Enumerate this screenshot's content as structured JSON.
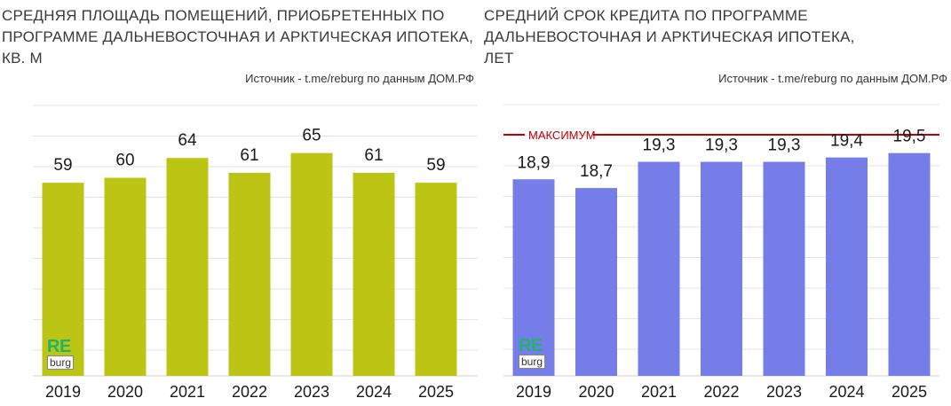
{
  "left": {
    "title": "СРЕДНЯЯ ПЛОЩАДЬ ПОМЕЩЕНИЙ, ПРИОБРЕТЕННЫХ ПО\nПРОГРАММЕ ДАЛЬНЕВОСТОЧНАЯ И АРКТИЧЕСКАЯ ИПОТЕКА,\nКВ. М",
    "source": "Источник - t.me/reburg по данным ДОМ.РФ",
    "logo_top": "RE",
    "logo_bottom": "burg"
  },
  "right": {
    "title": "СРЕДНИЙ СРОК КРЕДИТА  ПО ПРОГРАММЕ\nДАЛЬНЕВОСТОЧНАЯ И АРКТИЧЕСКАЯ ИПОТЕКА,\nЛЕТ",
    "source": "Источник - t.me/reburg по данным ДОМ.РФ",
    "max_label": "МАКСИМУМ",
    "logo_top": "RE",
    "logo_bottom": "burg"
  },
  "chart_data": [
    {
      "type": "bar",
      "title": "СРЕДНЯЯ ПЛОЩАДЬ ПОМЕЩЕНИЙ, ПРИОБРЕТЕННЫХ ПО ПРОГРАММЕ ДАЛЬНЕВОСТОЧНАЯ И АРКТИЧЕСКАЯ ИПОТЕКА, КВ. М",
      "categories": [
        "2019",
        "2020",
        "2021",
        "2022",
        "2023",
        "2024",
        "2025"
      ],
      "values": [
        59,
        60,
        64,
        61,
        65,
        61,
        59
      ],
      "labels": [
        "59",
        "60",
        "64",
        "61",
        "65",
        "61",
        "59"
      ],
      "ylim": [
        20,
        78
      ],
      "bar_color": "#bcc513",
      "grid": true,
      "xlabel": "",
      "ylabel": ""
    },
    {
      "type": "bar",
      "title": "СРЕДНИЙ СРОК КРЕДИТА ПО ПРОГРАММЕ ДАЛЬНЕВОСТОЧНАЯ И АРКТИЧЕСКАЯ ИПОТЕКА, ЛЕТ",
      "categories": [
        "2019",
        "2020",
        "2021",
        "2022",
        "2023",
        "2024",
        "2025"
      ],
      "values": [
        18.9,
        18.7,
        19.3,
        19.3,
        19.3,
        19.4,
        19.5
      ],
      "labels": [
        "18,9",
        "18,7",
        "19,3",
        "19,3",
        "19,3",
        "19,4",
        "19,5"
      ],
      "ylim": [
        14.4,
        19.92
      ],
      "bar_color": "#757de8",
      "grid": true,
      "max_line": {
        "value": 19.92,
        "color": "#c00000"
      },
      "xlabel": "",
      "ylabel": ""
    }
  ]
}
